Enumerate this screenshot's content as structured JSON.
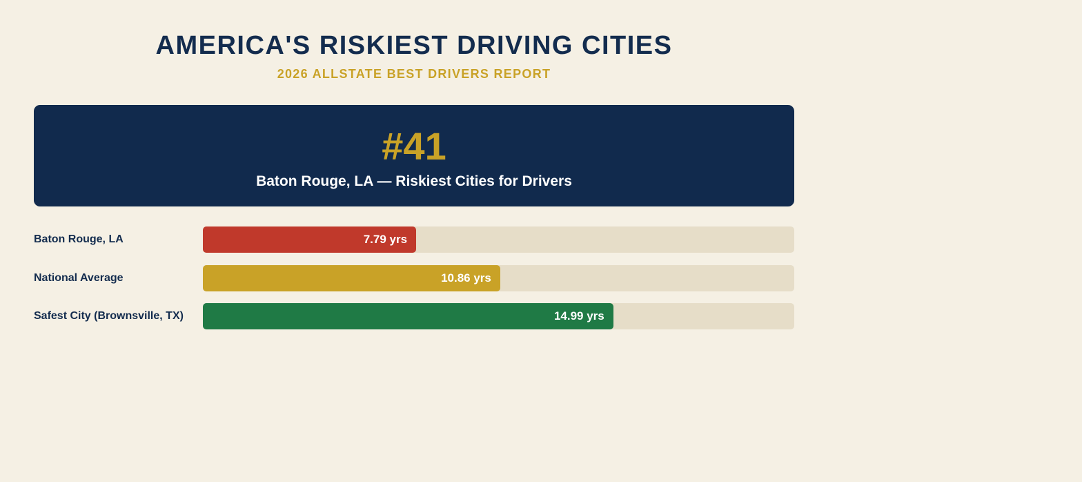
{
  "header": {
    "title": "AMERICA'S RISKIEST DRIVING CITIES",
    "subtitle": "2026 ALLSTATE BEST DRIVERS REPORT"
  },
  "hero": {
    "rank": "#41",
    "label": "Baton Rouge, LA — Riskiest Cities for Drivers"
  },
  "colors": {
    "background": "#f5f0e4",
    "navy": "#112a4d",
    "gold": "#c9a227",
    "track": "#e6ddc8"
  },
  "chart_data": {
    "type": "bar",
    "orientation": "horizontal",
    "title": "",
    "xlabel": "",
    "ylabel": "",
    "grid": false,
    "xlim": [
      0,
      21.6
    ],
    "categories": [
      "Baton Rouge, LA",
      "National Average",
      "Safest City (Brownsville, TX)"
    ],
    "values": [
      7.79,
      10.86,
      14.99
    ],
    "data_labels": [
      "7.79 yrs",
      "10.86 yrs",
      "14.99 yrs"
    ],
    "colors": [
      "#c0392b",
      "#c9a227",
      "#1f7a45"
    ]
  }
}
